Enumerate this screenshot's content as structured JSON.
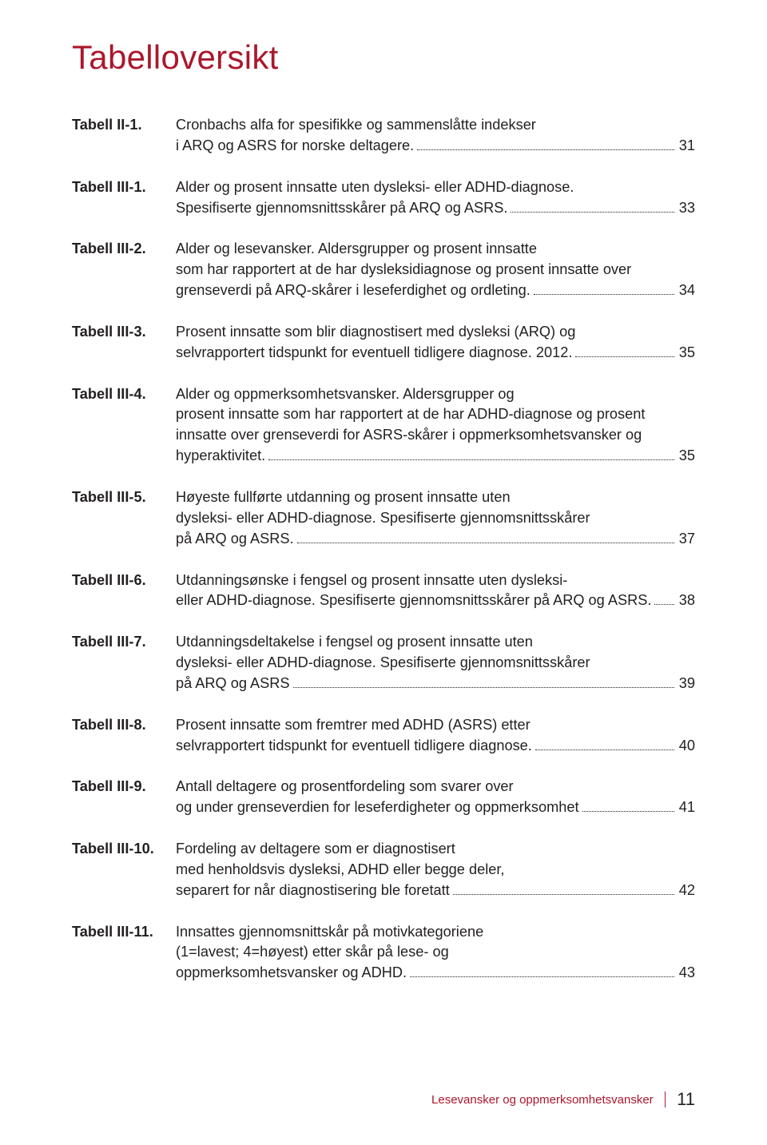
{
  "heading": "Tabelloversikt",
  "entries": [
    {
      "label": "Tabell II-1.",
      "lines": [
        {
          "text": "Cronbachs alfa for spesifikke og sammenslåtte indekser"
        },
        {
          "text": "i ARQ og ASRS for norske deltagere.",
          "page": "31"
        }
      ]
    },
    {
      "label": "Tabell III-1.",
      "lines": [
        {
          "text": "Alder og prosent innsatte uten dysleksi- eller ADHD-diagnose."
        },
        {
          "text": "Spesifiserte gjennomsnittsskårer på ARQ og ASRS.",
          "page": "33"
        }
      ]
    },
    {
      "label": "Tabell III-2.",
      "lines": [
        {
          "text": "Alder og lesevansker. Aldersgrupper og prosent innsatte"
        },
        {
          "text": "som har rapportert at de har dysleksidiagnose og prosent innsatte over"
        },
        {
          "text": "grenseverdi på ARQ-skårer i leseferdighet og ordleting.",
          "page": "34"
        }
      ]
    },
    {
      "label": "Tabell III-3.",
      "lines": [
        {
          "text": "Prosent innsatte som blir diagnostisert med dysleksi (ARQ) og"
        },
        {
          "text": "selvrapportert tidspunkt for eventuell tidligere diagnose. 2012.",
          "page": "35"
        }
      ]
    },
    {
      "label": "Tabell III-4.",
      "lines": [
        {
          "text": "Alder og oppmerksomhetsvansker. Aldersgrupper og"
        },
        {
          "text": "prosent innsatte som har rapportert at de har ADHD-diagnose og prosent"
        },
        {
          "text": "innsatte over grenseverdi for ASRS-skårer i oppmerksomhetsvansker og"
        },
        {
          "text": "hyperaktivitet.",
          "page": "35"
        }
      ]
    },
    {
      "label": "Tabell III-5.",
      "lines": [
        {
          "text": "Høyeste fullførte utdanning og prosent innsatte uten"
        },
        {
          "text": "dysleksi- eller ADHD-diagnose. Spesifiserte gjennomsnittsskårer"
        },
        {
          "text": "på ARQ og ASRS.",
          "page": "37"
        }
      ]
    },
    {
      "label": "Tabell III-6.",
      "lines": [
        {
          "text": "Utdanningsønske i fengsel og prosent innsatte uten dysleksi-"
        },
        {
          "text": "eller ADHD-diagnose. Spesifiserte gjennomsnittsskårer på ARQ og ASRS.",
          "page": "38"
        }
      ]
    },
    {
      "label": "Tabell III-7.",
      "lines": [
        {
          "text": "Utdanningsdeltakelse i fengsel og prosent innsatte uten"
        },
        {
          "text": "dysleksi- eller ADHD-diagnose. Spesifiserte gjennomsnittsskårer"
        },
        {
          "text": "på ARQ og ASRS",
          "page": "39"
        }
      ]
    },
    {
      "label": "Tabell III-8.",
      "lines": [
        {
          "text": "Prosent innsatte som fremtrer med ADHD (ASRS) etter"
        },
        {
          "text": "selvrapportert tidspunkt for eventuell tidligere diagnose.",
          "page": "40"
        }
      ]
    },
    {
      "label": "Tabell III-9.",
      "lines": [
        {
          "text": "Antall deltagere og prosentfordeling som svarer over"
        },
        {
          "text": "og under grenseverdien for leseferdigheter og oppmerksomhet",
          "page": "41"
        }
      ]
    },
    {
      "label": "Tabell III-10.",
      "lines": [
        {
          "text": "Fordeling av deltagere som er diagnostisert"
        },
        {
          "text": "med henholdsvis dysleksi, ADHD eller begge deler,"
        },
        {
          "text": "separert for når diagnostisering ble foretatt",
          "page": "42"
        }
      ]
    },
    {
      "label": "Tabell III-11.",
      "lines": [
        {
          "text": "Innsattes gjennomsnittskår på motivkategoriene"
        },
        {
          "text": "(1=lavest; 4=høyest) etter skår på lese- og"
        },
        {
          "text": "oppmerksomhetsvansker og ADHD.",
          "page": "43"
        }
      ]
    }
  ],
  "footer": {
    "text": "Lesevansker og oppmerksomhetsvansker",
    "page": "11"
  }
}
